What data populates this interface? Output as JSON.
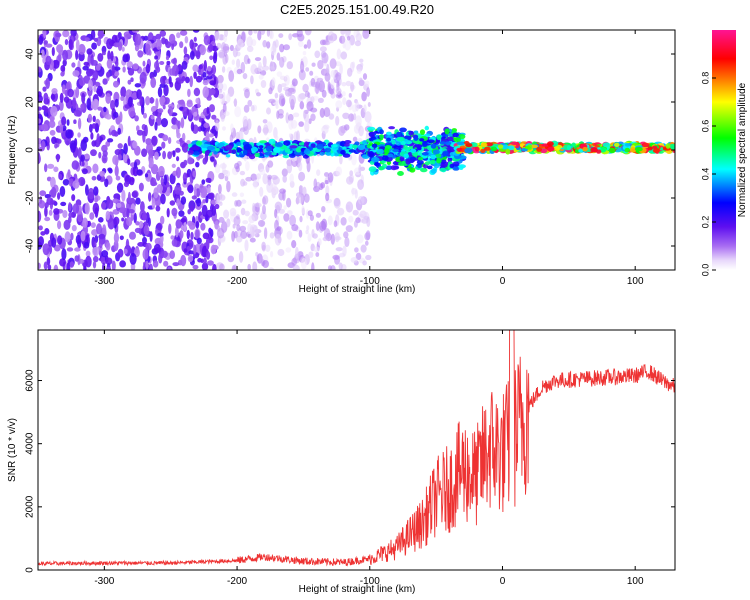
{
  "title": "C2E5.2025.151.00.49.R20",
  "colorbar": {
    "label": "Normalized spectral amplitude",
    "ticks": [
      "0.0",
      "0.2",
      "0.4",
      "0.6",
      "0.8"
    ],
    "tick_values": [
      0.0,
      0.2,
      0.4,
      0.6,
      0.8
    ],
    "range": [
      0.0,
      1.0
    ],
    "colors": [
      "#ffffff",
      "#c9a8f2",
      "#7a1cf0",
      "#0000ff",
      "#00ffff",
      "#00ff00",
      "#ffff00",
      "#ff0000",
      "#ff1493"
    ]
  },
  "chart_data": [
    {
      "type": "heatmap",
      "title": "",
      "xlabel": "Height of straight line (km)",
      "ylabel": "Frequency (Hz)",
      "xlim": [
        -350,
        130
      ],
      "ylim": [
        -50,
        50
      ],
      "xticks": [
        -300,
        -200,
        -100,
        0,
        100
      ],
      "yticks": [
        -40,
        -20,
        0,
        20,
        40
      ],
      "xtick_labels": [
        "-300",
        "-200",
        "-100",
        "0",
        "100"
      ],
      "ytick_labels": [
        "-40",
        "-20",
        "0",
        "20",
        "40"
      ],
      "colorbar_label": "Normalized spectral amplitude",
      "regions": [
        {
          "x_range": [
            -350,
            -215
          ],
          "y_range": [
            -50,
            50
          ],
          "amplitude": 0.15
        },
        {
          "x_range": [
            -215,
            -100
          ],
          "y_range": [
            -50,
            50
          ],
          "amplitude": 0.05
        },
        {
          "x_range": [
            -235,
            -100
          ],
          "y_range": [
            -3,
            4
          ],
          "amplitude": 0.35
        },
        {
          "x_range": [
            -100,
            -30
          ],
          "y_range": [
            -10,
            10
          ],
          "amplitude": 0.4
        },
        {
          "x_range": [
            -35,
            130
          ],
          "y_range": [
            -1,
            3
          ],
          "amplitude": 0.9
        }
      ]
    },
    {
      "type": "line",
      "title": "",
      "xlabel": "Height of straight line (km)",
      "ylabel": "SNR (10 * v/v)",
      "xlim": [
        -350,
        130
      ],
      "ylim": [
        0,
        7600
      ],
      "xticks": [
        -300,
        -200,
        -100,
        0,
        100
      ],
      "yticks": [
        0,
        2000,
        4000,
        6000
      ],
      "xtick_labels": [
        "-300",
        "-200",
        "-100",
        "0",
        "100"
      ],
      "ytick_labels": [
        "0",
        "2000",
        "4000",
        "6000"
      ],
      "color": "#ee3333",
      "x": [
        -350,
        -300,
        -250,
        -200,
        -180,
        -150,
        -120,
        -100,
        -80,
        -70,
        -60,
        -50,
        -40,
        -30,
        -20,
        -10,
        0,
        10,
        20,
        30,
        40,
        60,
        80,
        100,
        110,
        120,
        130
      ],
      "y": [
        200,
        220,
        220,
        300,
        420,
        280,
        240,
        350,
        700,
        1100,
        1500,
        2300,
        2600,
        3200,
        2900,
        3900,
        3700,
        4300,
        5200,
        5800,
        6000,
        6050,
        6100,
        6150,
        6300,
        6000,
        5800
      ]
    }
  ]
}
